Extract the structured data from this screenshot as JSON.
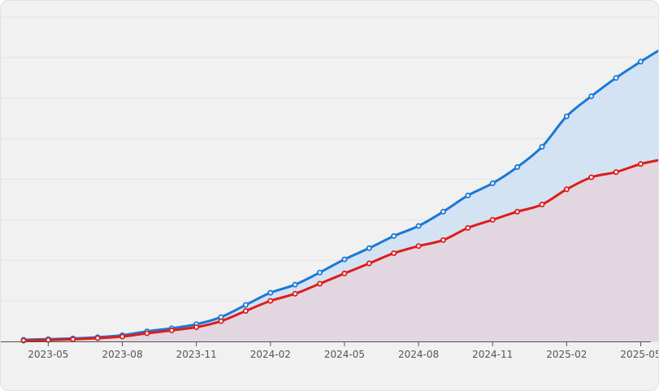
{
  "chart_data": {
    "type": "area",
    "x": [
      "2023-04",
      "2023-05",
      "2023-06",
      "2023-07",
      "2023-08",
      "2023-09",
      "2023-10",
      "2023-11",
      "2023-12",
      "2024-01",
      "2024-02",
      "2024-03",
      "2024-04",
      "2024-05",
      "2024-06",
      "2024-07",
      "2024-08",
      "2024-09",
      "2024-10",
      "2024-11",
      "2024-12",
      "2025-01",
      "2025-02",
      "2025-03",
      "2025-04",
      "2025-05",
      "2025-06"
    ],
    "x_tick_labels": [
      "2023-05",
      "2023-08",
      "2023-11",
      "2024-02",
      "2024-05",
      "2024-08",
      "2024-11",
      "2025-02",
      "2025-05"
    ],
    "series": [
      {
        "color": "#1a78d6",
        "fill": "#cfe1f3",
        "values": [
          1.0,
          1.4,
          1.8,
          2.6,
          3.8,
          6.2,
          8.1,
          10.6,
          15.0,
          22.5,
          30.0,
          35.0,
          42.5,
          50.6,
          57.5,
          65.0,
          71.2,
          80.0,
          90.0,
          97.5,
          107.5,
          120.0,
          138.8,
          151.2,
          162.5,
          172.5,
          181.9
        ]
      },
      {
        "color": "#dd1c1c",
        "fill": "#e4d5dc",
        "values": [
          0.5,
          0.9,
          1.3,
          2.0,
          3.0,
          5.0,
          6.8,
          8.8,
          12.5,
          18.8,
          25.0,
          29.4,
          35.6,
          41.9,
          48.1,
          54.4,
          58.8,
          62.5,
          70.0,
          75.0,
          80.0,
          84.4,
          93.8,
          101.2,
          104.4,
          109.4,
          112.5
        ]
      }
    ],
    "ylim": [
      0,
      200
    ],
    "grid": true,
    "legend": "none",
    "title": "",
    "xlabel": "",
    "ylabel": ""
  }
}
